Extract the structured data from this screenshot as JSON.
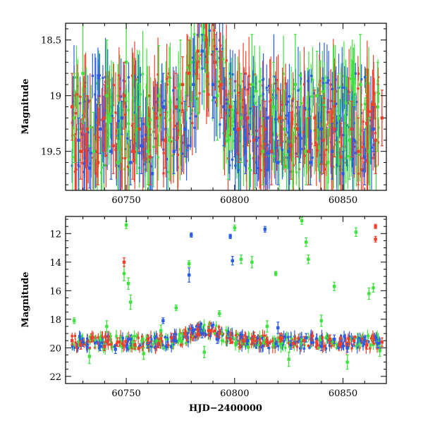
{
  "chart_data": [
    {
      "type": "scatter",
      "panel": "top",
      "title": "",
      "xlabel": "",
      "ylabel": "Magnitude",
      "xlim": [
        60722,
        60870
      ],
      "ylim": [
        19.85,
        18.35
      ],
      "y_inverted": true,
      "xticks": [
        60750,
        60800,
        60850
      ],
      "yticks": [
        18.5,
        19,
        19.5
      ],
      "ytick_labels": [
        "18.5",
        "19",
        "19.5"
      ],
      "error_bars": true,
      "series": [
        {
          "color": "#2b5ce8",
          "points": [
            [
              60728,
              19.4,
              0.2
            ],
            [
              60733,
              19.65,
              0.18
            ],
            [
              60738,
              19.3,
              0.22
            ],
            [
              60743,
              19.5,
              0.25
            ],
            [
              60748,
              19.2,
              0.15
            ],
            [
              60752,
              19.6,
              0.2
            ],
            [
              60757,
              19.45,
              0.25
            ],
            [
              60762,
              19.7,
              0.15
            ],
            [
              60767,
              19.1,
              0.3
            ],
            [
              60772,
              19.5,
              0.2
            ],
            [
              60777,
              19.3,
              0.25
            ],
            [
              60781,
              18.9,
              0.2
            ],
            [
              60785,
              18.6,
              0.15
            ],
            [
              60790,
              18.9,
              0.3
            ],
            [
              60795,
              19.1,
              0.35
            ],
            [
              60800,
              19.3,
              0.25
            ],
            [
              60805,
              19.5,
              0.2
            ],
            [
              60810,
              19.4,
              0.3
            ],
            [
              60815,
              19.2,
              0.25
            ],
            [
              60820,
              19.6,
              0.2
            ],
            [
              60825,
              19.5,
              0.35
            ],
            [
              60830,
              19.35,
              0.25
            ],
            [
              60835,
              19.6,
              0.2
            ],
            [
              60840,
              19.3,
              0.3
            ],
            [
              60845,
              19.5,
              0.25
            ],
            [
              60850,
              19.7,
              0.2
            ],
            [
              60855,
              19.4,
              0.3
            ],
            [
              60860,
              19.55,
              0.25
            ],
            [
              60864,
              19.3,
              0.2
            ]
          ]
        },
        {
          "color": "#3ee33e",
          "points": [
            [
              60726,
              19.2,
              0.4
            ],
            [
              60730,
              18.8,
              0.45
            ],
            [
              60735,
              19.5,
              0.35
            ],
            [
              60741,
              19.0,
              0.5
            ],
            [
              60746,
              19.6,
              0.3
            ],
            [
              60750,
              18.7,
              0.35
            ],
            [
              60755,
              19.3,
              0.4
            ],
            [
              60760,
              19.5,
              0.3
            ],
            [
              60765,
              19.0,
              0.45
            ],
            [
              60770,
              19.4,
              0.35
            ],
            [
              60775,
              18.9,
              0.4
            ],
            [
              60780,
              18.7,
              0.35
            ],
            [
              60786,
              18.5,
              0.25
            ],
            [
              60792,
              19.0,
              0.4
            ],
            [
              60797,
              19.4,
              0.35
            ],
            [
              60803,
              19.2,
              0.4
            ],
            [
              60808,
              18.9,
              0.45
            ],
            [
              60813,
              19.5,
              0.3
            ],
            [
              60818,
              19.1,
              0.4
            ],
            [
              60823,
              19.3,
              0.35
            ],
            [
              60828,
              18.9,
              0.45
            ],
            [
              60833,
              19.5,
              0.3
            ],
            [
              60838,
              19.0,
              0.4
            ],
            [
              60843,
              19.6,
              0.3
            ],
            [
              60848,
              19.2,
              0.4
            ],
            [
              60853,
              19.4,
              0.35
            ],
            [
              60858,
              18.9,
              0.45
            ],
            [
              60862,
              19.5,
              0.3
            ],
            [
              60866,
              19.1,
              0.4
            ]
          ]
        },
        {
          "color": "#f0402a",
          "points": [
            [
              60725,
              19.1,
              0.3
            ],
            [
              60729,
              19.5,
              0.25
            ],
            [
              60732,
              19.3,
              0.3
            ],
            [
              60737,
              19.6,
              0.2
            ],
            [
              60740,
              19.2,
              0.3
            ],
            [
              60744,
              19.45,
              0.25
            ],
            [
              60749,
              19.0,
              0.3
            ],
            [
              60753,
              19.5,
              0.25
            ],
            [
              60756,
              19.3,
              0.2
            ],
            [
              60761,
              19.55,
              0.25
            ],
            [
              60764,
              19.2,
              0.3
            ],
            [
              60768,
              19.4,
              0.25
            ],
            [
              60773,
              19.1,
              0.3
            ],
            [
              60776,
              18.9,
              0.25
            ],
            [
              60779,
              18.8,
              0.3
            ],
            [
              60783,
              18.6,
              0.25
            ],
            [
              60787,
              18.5,
              0.2
            ],
            [
              60791,
              18.7,
              0.25
            ],
            [
              60794,
              18.9,
              0.3
            ],
            [
              60798,
              19.1,
              0.25
            ],
            [
              60802,
              19.3,
              0.3
            ],
            [
              60806,
              19.2,
              0.25
            ],
            [
              60809,
              19.4,
              0.3
            ],
            [
              60814,
              19.3,
              0.25
            ],
            [
              60817,
              19.5,
              0.3
            ],
            [
              60821,
              19.2,
              0.25
            ],
            [
              60826,
              19.45,
              0.3
            ],
            [
              60829,
              19.3,
              0.25
            ],
            [
              60834,
              19.5,
              0.3
            ],
            [
              60837,
              19.2,
              0.25
            ],
            [
              60841,
              19.4,
              0.3
            ],
            [
              60846,
              19.3,
              0.25
            ],
            [
              60849,
              19.55,
              0.3
            ],
            [
              60854,
              19.3,
              0.25
            ],
            [
              60857,
              19.5,
              0.3
            ],
            [
              60861,
              19.25,
              0.25
            ],
            [
              60865,
              19.4,
              0.3
            ],
            [
              60868,
              19.2,
              0.25
            ]
          ]
        }
      ]
    },
    {
      "type": "scatter",
      "panel": "bottom",
      "title": "",
      "xlabel": "HJD−2400000",
      "ylabel": "Magnitude",
      "xlim": [
        60722,
        60870
      ],
      "ylim": [
        22.5,
        10.8
      ],
      "y_inverted": true,
      "xticks": [
        60750,
        60800,
        60850
      ],
      "yticks": [
        12,
        14,
        16,
        18,
        20,
        22
      ],
      "ytick_labels": [
        "12",
        "14",
        "16",
        "18",
        "20",
        "22"
      ],
      "error_bars": true,
      "series": [
        {
          "color": "#2b5ce8",
          "points": [
            [
              60730,
              19.6,
              0.3
            ],
            [
              60738,
              19.9,
              0.3
            ],
            [
              60745,
              20.1,
              0.3
            ],
            [
              60752,
              19.4,
              0.3
            ],
            [
              60760,
              19.7,
              0.3
            ],
            [
              60767,
              18.1,
              0.2
            ],
            [
              60772,
              19.5,
              0.3
            ],
            [
              60780,
              12.1,
              0.15
            ],
            [
              60779,
              14.9,
              0.5
            ],
            [
              60785,
              19.0,
              0.3
            ],
            [
              60792,
              19.4,
              0.3
            ],
            [
              60798,
              12.2,
              0.15
            ],
            [
              60799,
              13.9,
              0.3
            ],
            [
              60806,
              19.5,
              0.3
            ],
            [
              60814,
              11.7,
              0.2
            ],
            [
              60820,
              18.6,
              0.4
            ],
            [
              60826,
              19.8,
              0.3
            ],
            [
              60833,
              19.3,
              0.3
            ],
            [
              60840,
              19.9,
              0.3
            ],
            [
              60846,
              19.4,
              0.3
            ],
            [
              60852,
              20.0,
              0.3
            ],
            [
              60860,
              19.5,
              0.3
            ],
            [
              60866,
              19.7,
              0.3
            ]
          ]
        },
        {
          "color": "#3ee33e",
          "points": [
            [
              60726,
              18.1,
              0.2
            ],
            [
              60733,
              20.6,
              0.5
            ],
            [
              60741,
              18.5,
              0.4
            ],
            [
              60749,
              14.8,
              0.5
            ],
            [
              60750,
              11.4,
              0.25
            ],
            [
              60751,
              15.5,
              0.4
            ],
            [
              60752,
              16.8,
              0.5
            ],
            [
              60758,
              20.4,
              0.4
            ],
            [
              60766,
              18.8,
              0.4
            ],
            [
              60773,
              17.2,
              0.2
            ],
            [
              60779,
              14.1,
              0.2
            ],
            [
              60786,
              20.3,
              0.4
            ],
            [
              60793,
              17.6,
              0.2
            ],
            [
              60800,
              11.6,
              0.2
            ],
            [
              60803,
              13.8,
              0.3
            ],
            [
              60808,
              14.0,
              0.4
            ],
            [
              60815,
              18.5,
              0.4
            ],
            [
              60819,
              14.8,
              0.15
            ],
            [
              60825,
              20.8,
              0.5
            ],
            [
              60831,
              11.1,
              0.25
            ],
            [
              60833,
              12.6,
              0.3
            ],
            [
              60834,
              13.8,
              0.3
            ],
            [
              60840,
              18.1,
              0.4
            ],
            [
              60846,
              15.7,
              0.3
            ],
            [
              60852,
              21.0,
              0.5
            ],
            [
              60856,
              11.9,
              0.3
            ],
            [
              60862,
              16.2,
              0.4
            ],
            [
              60864,
              15.8,
              0.3
            ],
            [
              60867,
              20.2,
              0.4
            ]
          ]
        },
        {
          "color": "#f0402a",
          "points": [
            [
              60725,
              19.5,
              0.3
            ],
            [
              60729,
              19.8,
              0.3
            ],
            [
              60734,
              19.3,
              0.3
            ],
            [
              60740,
              19.9,
              0.3
            ],
            [
              60746,
              19.6,
              0.3
            ],
            [
              60749,
              14.0,
              0.3
            ],
            [
              60754,
              19.8,
              0.3
            ],
            [
              60760,
              19.4,
              0.3
            ],
            [
              60765,
              19.7,
              0.3
            ],
            [
              60771,
              19.3,
              0.3
            ],
            [
              60777,
              19.0,
              0.3
            ],
            [
              60783,
              18.7,
              0.3
            ],
            [
              60788,
              18.8,
              0.3
            ],
            [
              60793,
              19.0,
              0.3
            ],
            [
              60798,
              19.4,
              0.3
            ],
            [
              60804,
              19.5,
              0.3
            ],
            [
              60809,
              19.2,
              0.3
            ],
            [
              60815,
              19.6,
              0.3
            ],
            [
              60821,
              19.3,
              0.3
            ],
            [
              60827,
              19.7,
              0.3
            ],
            [
              60832,
              19.5,
              0.3
            ],
            [
              60838,
              19.8,
              0.3
            ],
            [
              60844,
              19.4,
              0.3
            ],
            [
              60849,
              19.7,
              0.3
            ],
            [
              60855,
              19.5,
              0.3
            ],
            [
              60861,
              19.8,
              0.3
            ],
            [
              60865,
              11.5,
              0.15
            ],
            [
              60865,
              12.4,
              0.2
            ],
            [
              60868,
              19.6,
              0.3
            ]
          ]
        }
      ]
    }
  ]
}
